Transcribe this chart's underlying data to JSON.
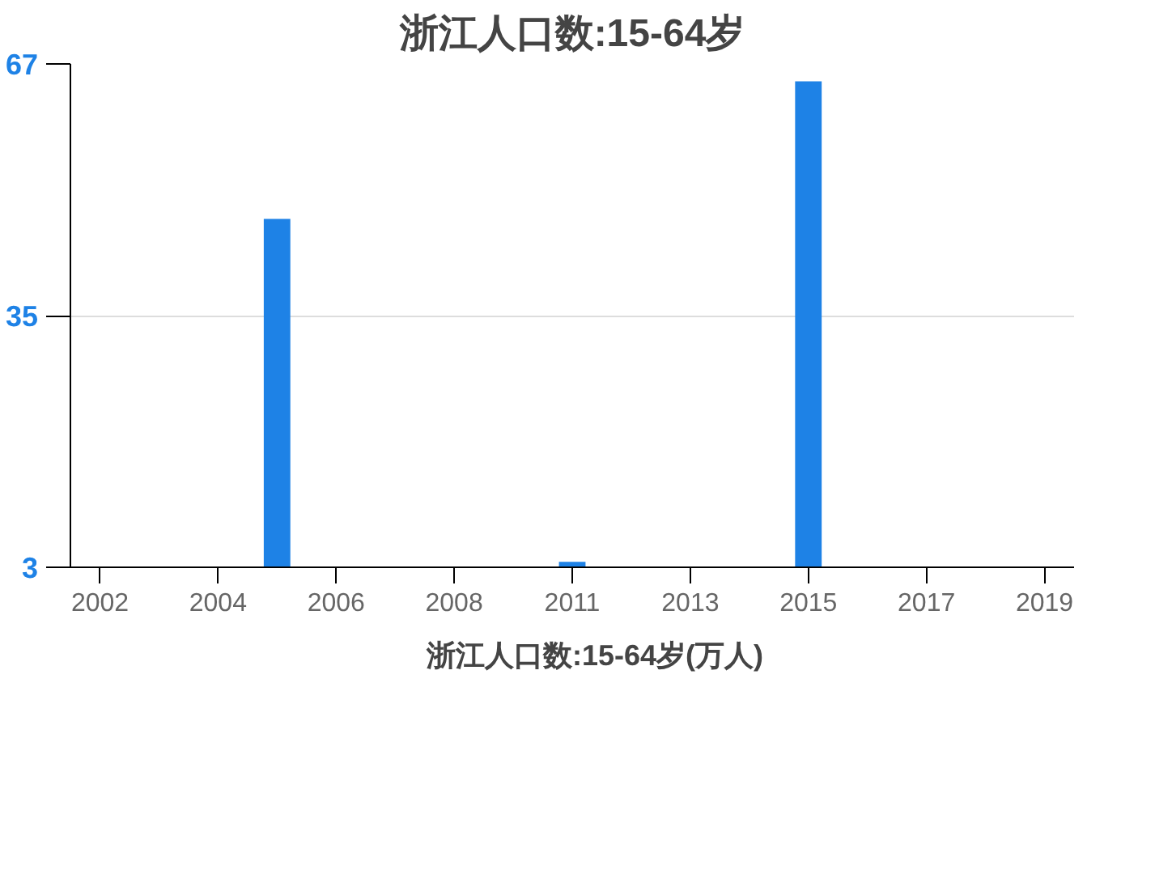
{
  "chart_data": {
    "type": "bar",
    "title": "浙江人口数:15-64岁",
    "categories": [
      "2002",
      null,
      "2004",
      null,
      "2006",
      null,
      "2008",
      null,
      "2011",
      null,
      "2013",
      null,
      "2015",
      null,
      "2017",
      null,
      "2019"
    ],
    "series": [
      {
        "name": "浙江人口数:15-64岁(万人)",
        "color": "#1e82e6",
        "values": [
          null,
          null,
          null,
          47.3,
          null,
          null,
          null,
          null,
          3.7,
          null,
          null,
          null,
          64.8,
          null,
          null,
          null,
          null
        ]
      }
    ],
    "ylim": [
      3,
      67
    ],
    "yticks": [
      3,
      35,
      67
    ],
    "grid": "y",
    "legend": "bottom"
  }
}
